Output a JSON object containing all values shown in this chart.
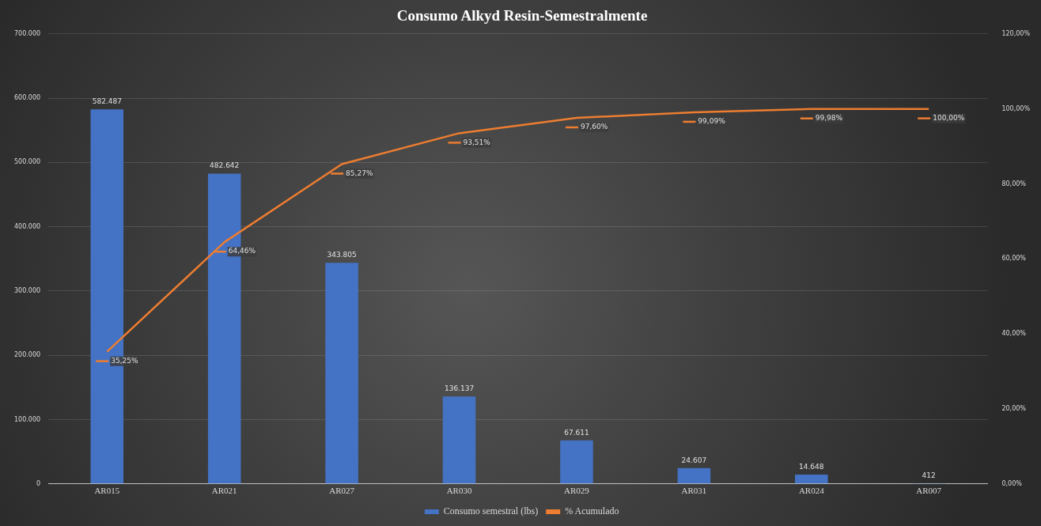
{
  "chart_data": {
    "type": "bar",
    "title": "Consumo Alkyd Resin-Semestralmente",
    "categories": [
      "AR015",
      "AR021",
      "AR027",
      "AR030",
      "AR029",
      "AR031",
      "AR024",
      "AR007"
    ],
    "series": [
      {
        "name": "Consumo semestral (lbs)",
        "color": "#4472c4",
        "values": [
          582487,
          482642,
          343805,
          136137,
          67611,
          24607,
          14648,
          412
        ],
        "value_labels": [
          "582.487",
          "482.642",
          "343.805",
          "136.137",
          "67.611",
          "24.607",
          "14.648",
          "412"
        ]
      },
      {
        "name": "% Acumulado",
        "type": "line",
        "axis": "y2",
        "color": "#ed7d31",
        "values": [
          35.25,
          64.46,
          85.27,
          93.51,
          97.6,
          99.09,
          99.98,
          100
        ],
        "value_labels": [
          "35,25%",
          "64,46%",
          "85,27%",
          "93,51%",
          "97,60%",
          "99,09%",
          "99,98%",
          "100,00%"
        ]
      }
    ],
    "ylim": [
      0,
      700000
    ],
    "yticks": [
      {
        "value": 0,
        "label": "0"
      },
      {
        "value": 100000,
        "label": "100.000"
      },
      {
        "value": 200000,
        "label": "200.000"
      },
      {
        "value": 300000,
        "label": "300.000"
      },
      {
        "value": 400000,
        "label": "400.000"
      },
      {
        "value": 500000,
        "label": "500.000"
      },
      {
        "value": 600000,
        "label": "600.000"
      },
      {
        "value": 700000,
        "label": "700.000"
      }
    ],
    "y2lim": [
      0,
      120
    ],
    "y2ticks": [
      {
        "value": 0,
        "label": "0,00%"
      },
      {
        "value": 20,
        "label": "20,00%"
      },
      {
        "value": 40,
        "label": "40,00%"
      },
      {
        "value": 60,
        "label": "60,00%"
      },
      {
        "value": 80,
        "label": "80,00%"
      },
      {
        "value": 100,
        "label": "100,00%"
      },
      {
        "value": 120,
        "label": "120,00%"
      }
    ],
    "grid": "y",
    "legend": "bottom",
    "marker": "none",
    "line_style": "solid"
  }
}
